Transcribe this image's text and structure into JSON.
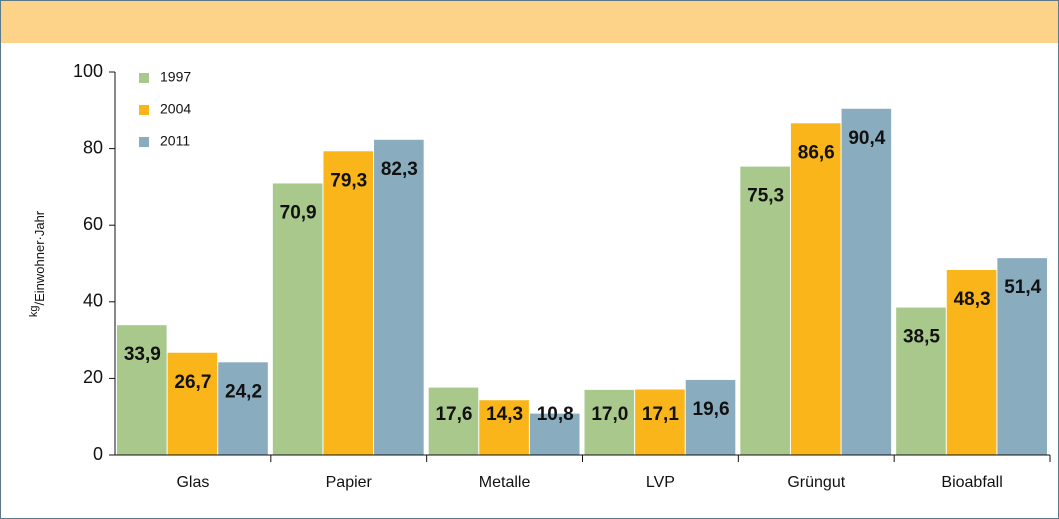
{
  "chart_data": {
    "type": "bar",
    "y_label": {
      "numerator": "kg",
      "denominator": "/Einwohner·Jahr"
    },
    "categories": [
      "Glas",
      "Papier",
      "Metalle",
      "LVP",
      "Grüngut",
      "Bioabfall"
    ],
    "series": [
      {
        "name": "1997",
        "color": "#a9c88c",
        "values": [
          33.9,
          70.9,
          17.6,
          17.0,
          75.3,
          38.5
        ],
        "value_labels": [
          "33,9",
          "70,9",
          "17,6",
          "17,0",
          "75,3",
          "38,5"
        ]
      },
      {
        "name": "2004",
        "color": "#f9b51a",
        "values": [
          26.7,
          79.3,
          14.3,
          17.1,
          86.6,
          48.3
        ],
        "value_labels": [
          "26,7",
          "79,3",
          "14,3",
          "17,1",
          "86,6",
          "48,3"
        ]
      },
      {
        "name": "2011",
        "color": "#8aacbf",
        "values": [
          24.2,
          82.3,
          10.8,
          19.6,
          90.4,
          51.4
        ],
        "value_labels": [
          "24,2",
          "82,3",
          "10,8",
          "19,6",
          "90,4",
          "51,4"
        ]
      }
    ],
    "ylim": [
      0,
      100
    ],
    "yticks": [
      0,
      20,
      40,
      60,
      80,
      100
    ],
    "label_color": "#3d6a85",
    "legend": "upper left"
  }
}
